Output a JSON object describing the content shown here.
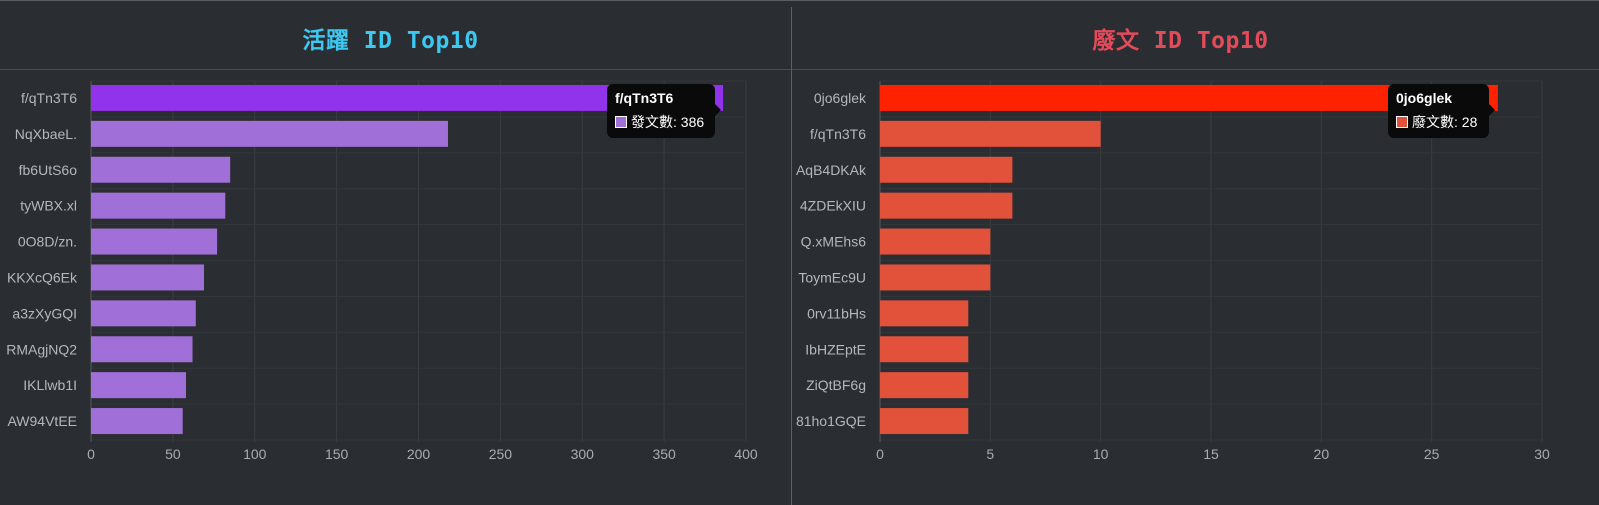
{
  "chart_data": [
    {
      "type": "bar",
      "orientation": "horizontal",
      "title": "活躍 ID Top10",
      "title_color": "#3cc8f0",
      "categories": [
        "f/qTn3T6",
        "NqXbaeL.",
        "fb6UtS6o",
        "tyWBX.xl",
        "0O8D/zn.",
        "KKXcQ6Ek",
        "a3zXyGQI",
        "RMAgjNQ2",
        "IKLlwb1I",
        "AW94VtEE"
      ],
      "series": [
        {
          "name": "發文數",
          "values": [
            386,
            218,
            85,
            82,
            77,
            69,
            64,
            62,
            58,
            56
          ]
        }
      ],
      "bar_color": "#a070d8",
      "highlight_color": "#9033ea",
      "highlight_index": 0,
      "xlim": [
        0,
        400
      ],
      "xticks": [
        0,
        50,
        100,
        150,
        200,
        250,
        300,
        350,
        400
      ],
      "grid": true,
      "tooltip": {
        "title": "f/qTn3T6",
        "label": "發文數",
        "value": "386"
      }
    },
    {
      "type": "bar",
      "orientation": "horizontal",
      "title": "廢文 ID Top10",
      "title_color": "#e34a5a",
      "categories": [
        "0jo6glek",
        "f/qTn3T6",
        "AqB4DKAk",
        "4ZDEkXIU",
        "Q.xMEhs6",
        "ToymEc9U",
        "0rv11bHs",
        "IbHZEptE",
        "ZiQtBF6g",
        "81ho1GQE"
      ],
      "series": [
        {
          "name": "廢文數",
          "values": [
            28,
            10,
            6,
            6,
            5,
            5,
            4,
            4,
            4,
            4
          ]
        }
      ],
      "bar_color": "#e2513a",
      "highlight_color": "#ff2200",
      "highlight_index": 0,
      "xlim": [
        0,
        30
      ],
      "xticks": [
        0,
        5,
        10,
        15,
        20,
        25,
        30
      ],
      "grid": true,
      "tooltip": {
        "title": "0jo6glek",
        "label": "廢文數",
        "value": "28"
      }
    }
  ]
}
